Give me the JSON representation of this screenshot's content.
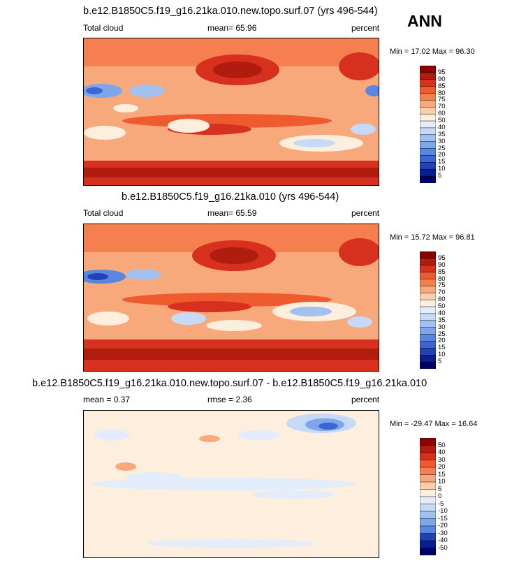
{
  "season": "ANN",
  "panels": [
    {
      "title": "b.e12.B1850C5.f19_g16.21ka.010.new.topo.surf.07 (yrs 496-544)",
      "left_label": "Total cloud",
      "center_label": "mean=  65.96",
      "right_label": "percent",
      "minmax": "Min =  17.02 Max =  96.30",
      "levels": [
        "95",
        "90",
        "85",
        "80",
        "75",
        "70",
        "60",
        "50",
        "40",
        "35",
        "30",
        "25",
        "20",
        "15",
        "10",
        "5"
      ],
      "colors": [
        "#8b0000",
        "#b01c0d",
        "#d7301f",
        "#ef5a2f",
        "#f57f4f",
        "#f8a97c",
        "#fbcfae",
        "#fdeedd",
        "#e3ecfb",
        "#c6d9f6",
        "#a2c1f1",
        "#7ea6ea",
        "#5a86e0",
        "#3d65d3",
        "#2142b7",
        "#0a1f8f",
        "#00006b"
      ]
    },
    {
      "title": "b.e12.B1850C5.f19_g16.21ka.010 (yrs 496-544)",
      "left_label": "Total cloud",
      "center_label": "mean=  65.59",
      "right_label": "percent",
      "minmax": "Min =  15.72 Max =  96.81",
      "levels": [
        "95",
        "90",
        "85",
        "80",
        "75",
        "70",
        "60",
        "50",
        "40",
        "35",
        "30",
        "25",
        "20",
        "15",
        "10",
        "5"
      ],
      "colors": [
        "#8b0000",
        "#b01c0d",
        "#d7301f",
        "#ef5a2f",
        "#f57f4f",
        "#f8a97c",
        "#fbcfae",
        "#fdeedd",
        "#e3ecfb",
        "#c6d9f6",
        "#a2c1f1",
        "#7ea6ea",
        "#5a86e0",
        "#3d65d3",
        "#2142b7",
        "#0a1f8f",
        "#00006b"
      ]
    },
    {
      "title": "b.e12.B1850C5.f19_g16.21ka.010.new.topo.surf.07 - b.e12.B1850C5.f19_g16.21ka.010",
      "left_label": "mean =   0.37",
      "center_label": "rmse =   2.36",
      "right_label": "percent",
      "minmax": "Min = -29.47 Max =  16.64",
      "levels": [
        "50",
        "40",
        "30",
        "20",
        "15",
        "10",
        "5",
        "0",
        "-5",
        "-10",
        "-15",
        "-20",
        "-30",
        "-40",
        "-50"
      ],
      "colors": [
        "#8b0000",
        "#b01c0d",
        "#d7301f",
        "#ef5a2f",
        "#f57f4f",
        "#f8a97c",
        "#fbcfae",
        "#fdeedd",
        "#e3ecfb",
        "#c6d9f6",
        "#a2c1f1",
        "#7ea6ea",
        "#5a86e0",
        "#2142b7",
        "#0a1f8f",
        "#00006b"
      ]
    }
  ]
}
